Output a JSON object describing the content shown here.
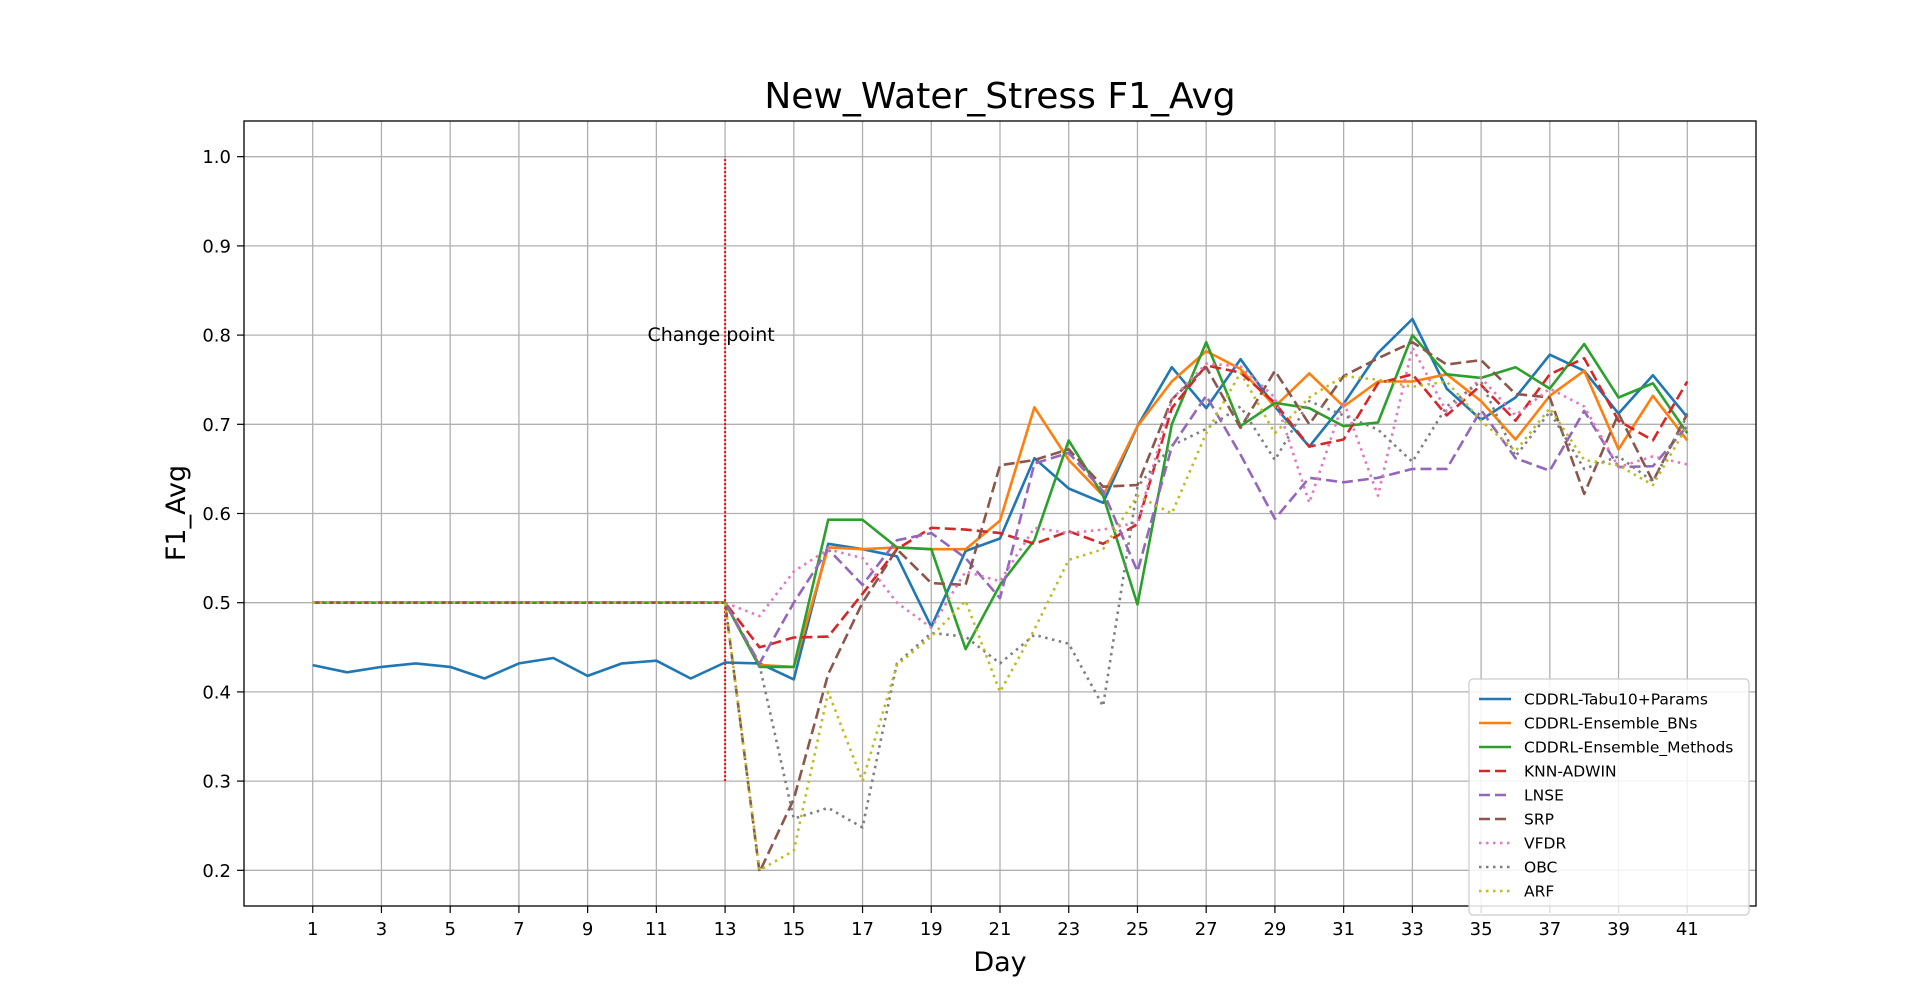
{
  "chart_data": {
    "type": "line",
    "title": "New_Water_Stress F1_Avg",
    "xlabel": "Day",
    "ylabel": "F1_Avg",
    "xlim": [
      -1,
      43
    ],
    "ylim": [
      0.16,
      1.04
    ],
    "xticks": [
      1,
      3,
      5,
      7,
      9,
      11,
      13,
      15,
      17,
      19,
      21,
      23,
      25,
      27,
      29,
      31,
      33,
      35,
      37,
      39,
      41
    ],
    "yticks": [
      0.2,
      0.3,
      0.4,
      0.5,
      0.6,
      0.7,
      0.8,
      0.9,
      1.0
    ],
    "grid": true,
    "legend_position": "lower-right",
    "annotations": [
      {
        "text": "Change point",
        "x": 13,
        "y": 0.8,
        "line": {
          "x": 13,
          "y0": 0.3,
          "y1": 1.0,
          "color": "#ff0000",
          "style": "dotted"
        }
      }
    ],
    "x": [
      1,
      2,
      3,
      4,
      5,
      6,
      7,
      8,
      9,
      10,
      11,
      12,
      13,
      14,
      15,
      16,
      17,
      18,
      19,
      20,
      21,
      22,
      23,
      24,
      25,
      26,
      27,
      28,
      29,
      30,
      31,
      32,
      33,
      34,
      35,
      36,
      37,
      38,
      39,
      40,
      41
    ],
    "series": [
      {
        "name": "CDDRL-Tabu10+Params",
        "color": "#1f77b4",
        "dash": "solid",
        "values": [
          0.43,
          0.422,
          0.428,
          0.432,
          0.428,
          0.415,
          0.432,
          0.438,
          0.418,
          0.432,
          0.435,
          0.415,
          0.433,
          0.432,
          0.414,
          0.566,
          0.56,
          0.552,
          0.473,
          0.558,
          0.572,
          0.662,
          0.628,
          0.612,
          0.698,
          0.764,
          0.718,
          0.773,
          0.72,
          0.675,
          0.723,
          0.78,
          0.818,
          0.74,
          0.705,
          0.73,
          0.778,
          0.76,
          0.712,
          0.755,
          0.708
        ]
      },
      {
        "name": "CDDRL-Ensemble_BNs",
        "color": "#ff7f0e",
        "dash": "solid",
        "values": [
          0.5,
          0.5,
          0.5,
          0.5,
          0.5,
          0.5,
          0.5,
          0.5,
          0.5,
          0.5,
          0.5,
          0.5,
          0.5,
          0.43,
          0.428,
          0.562,
          0.56,
          0.562,
          0.56,
          0.56,
          0.592,
          0.719,
          0.66,
          0.62,
          0.698,
          0.748,
          0.782,
          0.762,
          0.72,
          0.757,
          0.72,
          0.748,
          0.748,
          0.756,
          0.726,
          0.683,
          0.732,
          0.76,
          0.672,
          0.732,
          0.682
        ]
      },
      {
        "name": "CDDRL-Ensemble_Methods",
        "color": "#2ca02c",
        "dash": "solid",
        "values": [
          0.5,
          0.5,
          0.5,
          0.5,
          0.5,
          0.5,
          0.5,
          0.5,
          0.5,
          0.5,
          0.5,
          0.5,
          0.5,
          0.428,
          0.428,
          0.593,
          0.593,
          0.562,
          0.56,
          0.448,
          0.52,
          0.57,
          0.682,
          0.62,
          0.498,
          0.7,
          0.792,
          0.698,
          0.724,
          0.718,
          0.698,
          0.702,
          0.8,
          0.756,
          0.752,
          0.764,
          0.74,
          0.79,
          0.73,
          0.746,
          0.69
        ]
      },
      {
        "name": "KNN-ADWIN",
        "color": "#d62728",
        "dash": "dashed",
        "values": [
          0.5,
          0.5,
          0.5,
          0.5,
          0.5,
          0.5,
          0.5,
          0.5,
          0.5,
          0.5,
          0.5,
          0.5,
          0.5,
          0.45,
          0.461,
          0.462,
          0.51,
          0.56,
          0.584,
          0.582,
          0.578,
          0.566,
          0.58,
          0.566,
          0.588,
          0.718,
          0.766,
          0.758,
          0.724,
          0.675,
          0.683,
          0.746,
          0.756,
          0.71,
          0.744,
          0.704,
          0.756,
          0.774,
          0.704,
          0.682,
          0.748
        ]
      },
      {
        "name": "LNSE",
        "color": "#9467bd",
        "dash": "dashed",
        "values": [
          0.5,
          0.5,
          0.5,
          0.5,
          0.5,
          0.5,
          0.5,
          0.5,
          0.5,
          0.5,
          0.5,
          0.5,
          0.5,
          0.432,
          0.5,
          0.56,
          0.52,
          0.57,
          0.578,
          0.55,
          0.505,
          0.656,
          0.668,
          0.625,
          0.535,
          0.675,
          0.732,
          0.666,
          0.594,
          0.64,
          0.635,
          0.64,
          0.65,
          0.65,
          0.716,
          0.662,
          0.648,
          0.715,
          0.652,
          0.653,
          0.698
        ]
      },
      {
        "name": "SRP",
        "color": "#8c564b",
        "dash": "dashed",
        "values": [
          0.5,
          0.5,
          0.5,
          0.5,
          0.5,
          0.5,
          0.5,
          0.5,
          0.5,
          0.5,
          0.5,
          0.5,
          0.5,
          0.198,
          0.28,
          0.42,
          0.5,
          0.56,
          0.522,
          0.52,
          0.654,
          0.66,
          0.672,
          0.63,
          0.632,
          0.728,
          0.764,
          0.696,
          0.76,
          0.7,
          0.754,
          0.774,
          0.792,
          0.767,
          0.772,
          0.734,
          0.73,
          0.622,
          0.712,
          0.636,
          0.712
        ]
      },
      {
        "name": "VFDR",
        "color": "#e377c2",
        "dash": "dotted",
        "values": [
          0.5,
          0.5,
          0.5,
          0.5,
          0.5,
          0.5,
          0.5,
          0.5,
          0.5,
          0.5,
          0.5,
          0.5,
          0.5,
          0.485,
          0.535,
          0.56,
          0.55,
          0.5,
          0.472,
          0.535,
          0.524,
          0.584,
          0.578,
          0.582,
          0.59,
          0.728,
          0.768,
          0.765,
          0.73,
          0.612,
          0.726,
          0.62,
          0.786,
          0.714,
          0.752,
          0.71,
          0.74,
          0.72,
          0.652,
          0.664,
          0.655
        ]
      },
      {
        "name": "OBC",
        "color": "#7f7f7f",
        "dash": "dotted",
        "values": [
          0.5,
          0.5,
          0.5,
          0.5,
          0.5,
          0.5,
          0.5,
          0.5,
          0.5,
          0.5,
          0.5,
          0.5,
          0.5,
          0.43,
          0.258,
          0.27,
          0.248,
          0.432,
          0.466,
          0.462,
          0.432,
          0.464,
          0.454,
          0.384,
          0.63,
          0.676,
          0.695,
          0.72,
          0.66,
          0.726,
          0.71,
          0.694,
          0.658,
          0.72,
          0.748,
          0.664,
          0.714,
          0.65,
          0.664,
          0.636,
          0.71
        ]
      },
      {
        "name": "ARF",
        "color": "#bcbd22",
        "dash": "dotted",
        "values": [
          0.5,
          0.5,
          0.5,
          0.5,
          0.5,
          0.5,
          0.5,
          0.5,
          0.5,
          0.5,
          0.5,
          0.5,
          0.5,
          0.2,
          0.222,
          0.4,
          0.3,
          0.43,
          0.462,
          0.502,
          0.4,
          0.47,
          0.548,
          0.56,
          0.62,
          0.6,
          0.69,
          0.758,
          0.69,
          0.73,
          0.754,
          0.75,
          0.742,
          0.748,
          0.704,
          0.67,
          0.718,
          0.66,
          0.654,
          0.632,
          0.698
        ]
      }
    ]
  }
}
